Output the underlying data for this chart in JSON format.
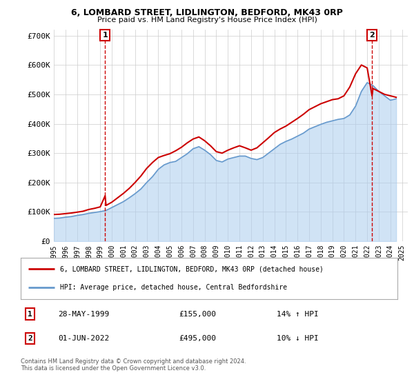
{
  "title": "6, LOMBARD STREET, LIDLINGTON, BEDFORD, MK43 0RP",
  "subtitle": "Price paid vs. HM Land Registry's House Price Index (HPI)",
  "footer": "Contains HM Land Registry data © Crown copyright and database right 2024.\nThis data is licensed under the Open Government Licence v3.0.",
  "legend_line1": "6, LOMBARD STREET, LIDLINGTON, BEDFORD, MK43 0RP (detached house)",
  "legend_line2": "HPI: Average price, detached house, Central Bedfordshire",
  "sale1_label": "1",
  "sale1_date": "28-MAY-1999",
  "sale1_price": "£155,000",
  "sale1_hpi": "14% ↑ HPI",
  "sale2_label": "2",
  "sale2_date": "01-JUN-2022",
  "sale2_price": "£495,000",
  "sale2_hpi": "10% ↓ HPI",
  "property_color": "#cc0000",
  "hpi_color": "#6699cc",
  "hpi_fill_color": "#aaccee",
  "background_color": "#ffffff",
  "grid_color": "#cccccc",
  "ylim": [
    0,
    720000
  ],
  "yticks": [
    0,
    100000,
    200000,
    300000,
    400000,
    500000,
    600000,
    700000
  ],
  "ytick_labels": [
    "£0",
    "£100K",
    "£200K",
    "£300K",
    "£400K",
    "£500K",
    "£600K",
    "£700K"
  ],
  "sale1_year": 1999.42,
  "sale1_value": 155000,
  "sale2_year": 2022.42,
  "sale2_value": 495000,
  "hpi_years": [
    1995.0,
    1995.5,
    1996.0,
    1996.5,
    1997.0,
    1997.5,
    1998.0,
    1998.5,
    1999.0,
    1999.5,
    2000.0,
    2000.5,
    2001.0,
    2001.5,
    2002.0,
    2002.5,
    2003.0,
    2003.5,
    2004.0,
    2004.5,
    2005.0,
    2005.5,
    2006.0,
    2006.5,
    2007.0,
    2007.5,
    2008.0,
    2008.5,
    2009.0,
    2009.5,
    2010.0,
    2010.5,
    2011.0,
    2011.5,
    2012.0,
    2012.5,
    2013.0,
    2013.5,
    2014.0,
    2014.5,
    2015.0,
    2015.5,
    2016.0,
    2016.5,
    2017.0,
    2017.5,
    2018.0,
    2018.5,
    2019.0,
    2019.5,
    2020.0,
    2020.5,
    2021.0,
    2021.5,
    2022.0,
    2022.5,
    2023.0,
    2023.5,
    2024.0,
    2024.5
  ],
  "hpi_values": [
    78000,
    79000,
    82000,
    84000,
    88000,
    91000,
    95000,
    98000,
    101000,
    105000,
    115000,
    125000,
    135000,
    148000,
    162000,
    178000,
    200000,
    220000,
    245000,
    260000,
    268000,
    272000,
    285000,
    298000,
    315000,
    322000,
    310000,
    295000,
    275000,
    270000,
    280000,
    285000,
    290000,
    290000,
    282000,
    278000,
    285000,
    300000,
    315000,
    330000,
    340000,
    348000,
    358000,
    368000,
    382000,
    390000,
    398000,
    405000,
    410000,
    415000,
    418000,
    430000,
    460000,
    510000,
    540000,
    530000,
    510000,
    495000,
    480000,
    485000
  ],
  "prop_years": [
    1995.0,
    1995.5,
    1996.0,
    1996.5,
    1997.0,
    1997.5,
    1998.0,
    1998.5,
    1999.0,
    1999.42,
    1999.5,
    2000.0,
    2000.5,
    2001.0,
    2001.5,
    2002.0,
    2002.5,
    2003.0,
    2003.5,
    2004.0,
    2004.5,
    2005.0,
    2005.5,
    2006.0,
    2006.5,
    2007.0,
    2007.5,
    2008.0,
    2008.5,
    2009.0,
    2009.5,
    2010.0,
    2010.5,
    2011.0,
    2011.5,
    2012.0,
    2012.5,
    2013.0,
    2013.5,
    2014.0,
    2014.5,
    2015.0,
    2015.5,
    2016.0,
    2016.5,
    2017.0,
    2017.5,
    2018.0,
    2018.5,
    2019.0,
    2019.5,
    2020.0,
    2020.5,
    2021.0,
    2021.5,
    2022.0,
    2022.42,
    2022.5,
    2023.0,
    2023.5,
    2024.0,
    2024.5
  ],
  "prop_values": [
    91000,
    92000,
    94000,
    96000,
    99000,
    102000,
    108000,
    112000,
    117000,
    155000,
    122000,
    133000,
    148000,
    163000,
    180000,
    200000,
    222000,
    248000,
    268000,
    285000,
    292000,
    298000,
    308000,
    320000,
    335000,
    348000,
    355000,
    342000,
    325000,
    305000,
    300000,
    310000,
    318000,
    325000,
    318000,
    310000,
    318000,
    335000,
    352000,
    370000,
    382000,
    392000,
    405000,
    418000,
    432000,
    448000,
    458000,
    468000,
    475000,
    482000,
    485000,
    495000,
    525000,
    570000,
    600000,
    590000,
    495000,
    520000,
    510000,
    500000,
    495000,
    490000
  ],
  "xtick_years": [
    1995,
    1996,
    1997,
    1998,
    1999,
    2000,
    2001,
    2002,
    2003,
    2004,
    2005,
    2006,
    2007,
    2008,
    2009,
    2010,
    2011,
    2012,
    2013,
    2014,
    2015,
    2016,
    2017,
    2018,
    2019,
    2020,
    2021,
    2022,
    2023,
    2024,
    2025
  ]
}
